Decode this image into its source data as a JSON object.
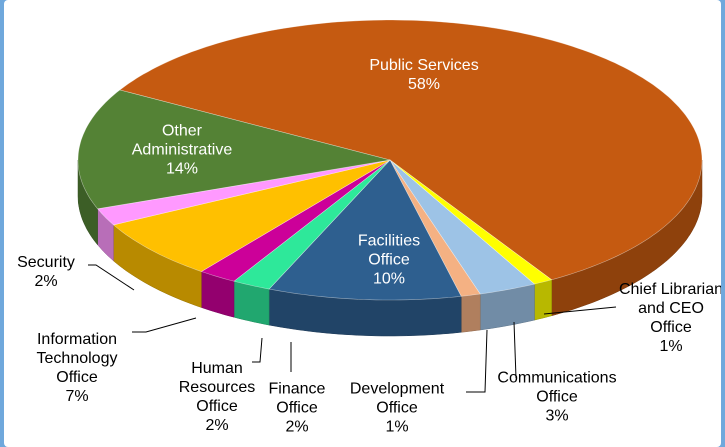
{
  "chart_data": {
    "type": "pie",
    "categories": [
      "Public Services",
      "Chief Librarian and CEO Office",
      "Communications Office",
      "Development Office",
      "Facilities Office",
      "Finance Office",
      "Human Resources Office",
      "Information Technology Office",
      "Security",
      "Other Administrative"
    ],
    "values": [
      58,
      1,
      3,
      1,
      10,
      2,
      2,
      7,
      2,
      14
    ],
    "value_labels": [
      "58%",
      "1%",
      "3%",
      "1%",
      "10%",
      "2%",
      "2%",
      "7%",
      "2%",
      "14%"
    ],
    "colors": [
      "#c55a11",
      "#ffff00",
      "#9dc3e6",
      "#f4b183",
      "#2e5f8f",
      "#2ee89a",
      "#cc0099",
      "#ffc000",
      "#ff99ff",
      "#548235"
    ]
  }
}
